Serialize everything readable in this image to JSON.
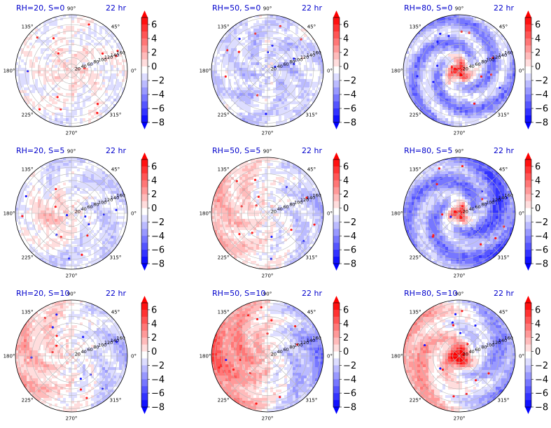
{
  "chart_data": {
    "type": "polar-contour-grid",
    "rows": 3,
    "cols": 3,
    "colormap": "bwr",
    "color_levels": [
      -8,
      -6,
      -4,
      -2,
      0,
      2,
      4,
      6
    ],
    "colorbar_ticks": [
      "6",
      "4",
      "2",
      "0",
      "−2",
      "−4",
      "−6",
      "−8"
    ],
    "angle_labels": [
      "90°",
      "45°",
      "0°",
      "315°",
      "270°",
      "225°",
      "180°",
      "135°"
    ],
    "radial_labels": [
      "20",
      "40",
      "60",
      "80",
      "100",
      "120",
      "140",
      "160"
    ],
    "radial_label_angle_deg": 20,
    "time_label": "22 hr",
    "panels": [
      {
        "title": "RH=20, S=0",
        "pattern": "warm-center-weak"
      },
      {
        "title": "RH=50, S=0",
        "pattern": "cool-noisy"
      },
      {
        "title": "RH=80, S=0",
        "pattern": "warm-core-spiral"
      },
      {
        "title": "RH=20, S=5",
        "pattern": "warm-shifted-west"
      },
      {
        "title": "RH=50, S=5",
        "pattern": "dipole-west-warm"
      },
      {
        "title": "RH=80, S=5",
        "pattern": "warm-core-east-cool"
      },
      {
        "title": "RH=20, S=10",
        "pattern": "dipole-west-warm"
      },
      {
        "title": "RH=50, S=10",
        "pattern": "dipole-west-warm-strong"
      },
      {
        "title": "RH=80, S=10",
        "pattern": "warm-core-west-warm-east-cool"
      }
    ]
  }
}
